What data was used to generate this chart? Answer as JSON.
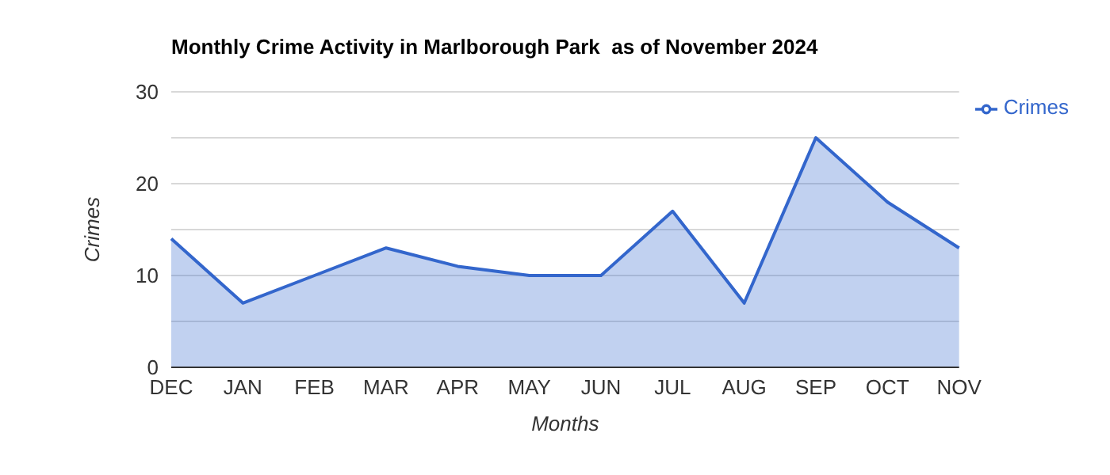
{
  "chart_data": {
    "type": "area",
    "title": "Monthly Crime Activity in Marlborough Park  as of November 2024",
    "xlabel": "Months",
    "ylabel": "Crimes",
    "categories": [
      "DEC",
      "JAN",
      "FEB",
      "MAR",
      "APR",
      "MAY",
      "JUN",
      "JUL",
      "AUG",
      "SEP",
      "OCT",
      "NOV"
    ],
    "series": [
      {
        "name": "Crimes",
        "color": "#3366cc",
        "values": [
          14,
          7,
          10,
          13,
          11,
          10,
          10,
          17,
          7,
          25,
          18,
          13
        ]
      }
    ],
    "ylim": [
      0,
      30
    ],
    "yticks": [
      0,
      {
        "value": 5,
        "label": null
      },
      10,
      {
        "value": 15,
        "label": null
      },
      20,
      {
        "value": 25,
        "label": null
      },
      30
    ],
    "grid": "y",
    "legend": "top right"
  }
}
